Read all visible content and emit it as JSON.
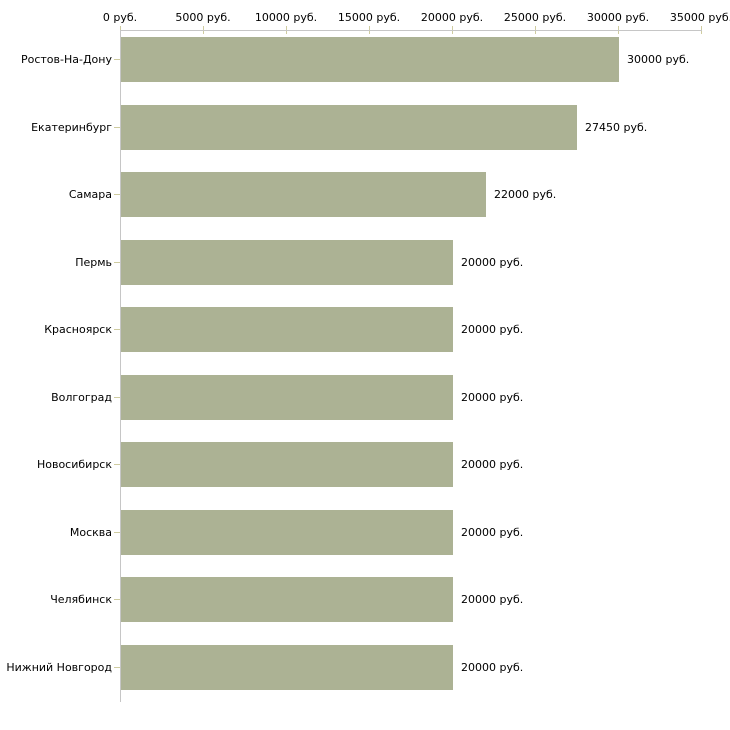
{
  "chart_data": {
    "type": "bar",
    "orientation": "horizontal",
    "title": "",
    "xlabel": "",
    "ylabel": "",
    "xlim": [
      0,
      35000
    ],
    "x_tick_interval": 5000,
    "x_tick_values": [
      0,
      5000,
      10000,
      15000,
      20000,
      25000,
      30000,
      35000
    ],
    "x_tick_labels": [
      "0 руб.",
      "5000 руб.",
      "10000 руб.",
      "15000 руб.",
      "20000 руб.",
      "25000 руб.",
      "30000 руб.",
      "35000 руб."
    ],
    "categories": [
      "Ростов-На-Дону",
      "Екатеринбург",
      "Самара",
      "Пермь",
      "Красноярск",
      "Волгоград",
      "Новосибирск",
      "Москва",
      "Челябинск",
      "Нижний Новгород"
    ],
    "values": [
      30000,
      27450,
      22000,
      20000,
      20000,
      20000,
      20000,
      20000,
      20000,
      20000
    ],
    "value_labels": [
      "30000 руб.",
      "27450 руб.",
      "22000 руб.",
      "20000 руб.",
      "20000 руб.",
      "20000 руб.",
      "20000 руб.",
      "20000 руб.",
      "20000 руб.",
      "20000 руб."
    ],
    "unit_suffix": "руб.",
    "grid": false,
    "legend": "none",
    "colors": {
      "bar": "#acb294",
      "axis_line": "#c6c6c6",
      "tick": "#cfcca0",
      "text": "#000000",
      "background": "#ffffff"
    }
  }
}
